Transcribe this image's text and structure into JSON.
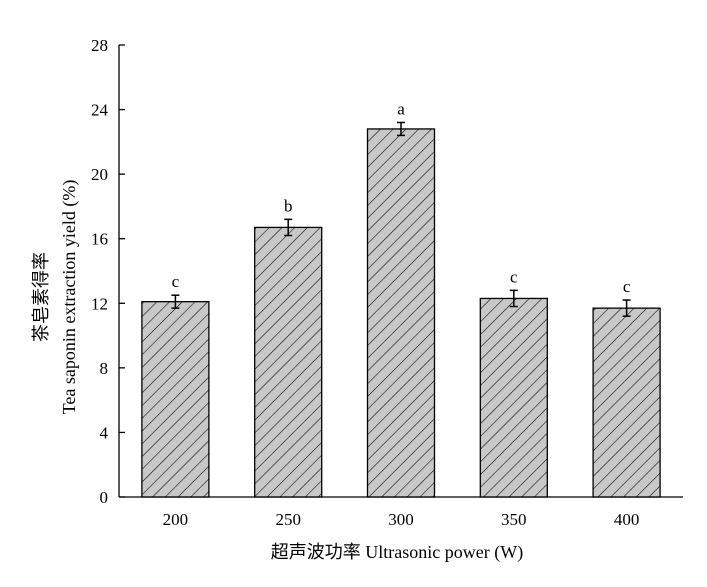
{
  "chart_data": {
    "type": "bar",
    "categories": [
      "200",
      "250",
      "300",
      "350",
      "400"
    ],
    "values": [
      12.1,
      16.7,
      22.8,
      12.3,
      11.7
    ],
    "errors": [
      0.4,
      0.5,
      0.4,
      0.5,
      0.5
    ],
    "significance": [
      "c",
      "b",
      "a",
      "c",
      "c"
    ],
    "xlabel": "超声波功率 Ultrasonic power (W)",
    "ylabel_cn": "茶皂素得率",
    "ylabel_en": "Tea saponin extraction yield (%)",
    "ylim": [
      0,
      28
    ],
    "yticks": [
      0,
      4,
      8,
      12,
      16,
      20,
      24,
      28
    ],
    "grid": false,
    "legend": "none",
    "bar_fill": "#c8c8c8",
    "bar_pattern": "diagonal-hatch"
  }
}
